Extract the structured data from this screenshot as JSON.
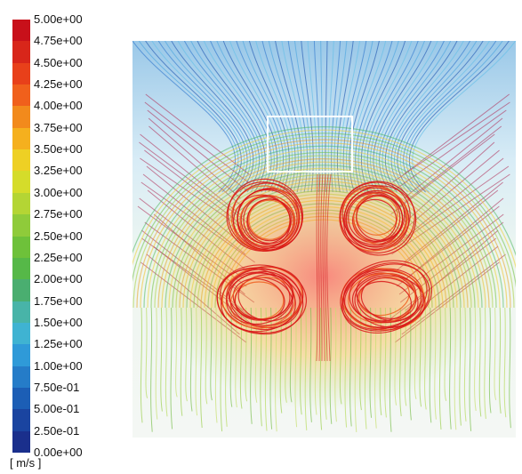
{
  "legend": {
    "unit": "[ m/s ]",
    "ticks": [
      "5.00e+00",
      "4.75e+00",
      "4.50e+00",
      "4.25e+00",
      "4.00e+00",
      "3.75e+00",
      "3.50e+00",
      "3.25e+00",
      "3.00e+00",
      "2.75e+00",
      "2.50e+00",
      "2.25e+00",
      "2.00e+00",
      "1.75e+00",
      "1.50e+00",
      "1.25e+00",
      "1.00e+00",
      "7.50e-01",
      "5.00e-01",
      "2.50e-01",
      "0.00e+00"
    ],
    "colors": [
      "#c8101a",
      "#d8261a",
      "#e8401a",
      "#f0601c",
      "#f28a1c",
      "#f5b01e",
      "#eed024",
      "#d5dc2a",
      "#b4d534",
      "#8fcb3a",
      "#6ec13a",
      "#56b848",
      "#4aae70",
      "#48b4a8",
      "#3fb3d2",
      "#2f9ad8",
      "#257cc8",
      "#1c5eb5",
      "#1a44a0",
      "#1a2f8c"
    ]
  }
}
